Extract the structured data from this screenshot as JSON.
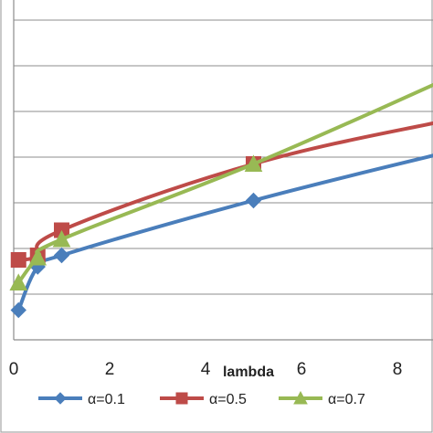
{
  "chart_data": {
    "type": "line",
    "title": "",
    "xlabel": "lambda",
    "ylabel": "",
    "xlim": [
      0,
      9
    ],
    "ylim": [
      0,
      7
    ],
    "x_ticks": [
      "0",
      "2",
      "4",
      "6",
      "8"
    ],
    "grid": true,
    "legend_position": "bottom",
    "series": [
      {
        "name": "α=0.1",
        "color": "#4a7ebb",
        "marker": "diamond",
        "x": [
          0.1,
          0.5,
          1.0,
          5.0,
          9.0
        ],
        "y": [
          0.65,
          1.6,
          1.85,
          3.05,
          4.1
        ]
      },
      {
        "name": "α=0.5",
        "color": "#be4b48",
        "marker": "square",
        "x": [
          0.1,
          0.5,
          1.0,
          5.0,
          9.0
        ],
        "y": [
          1.75,
          1.85,
          2.4,
          3.85,
          4.8
        ]
      },
      {
        "name": "α=0.7",
        "color": "#98b954",
        "marker": "triangle",
        "x": [
          0.1,
          0.5,
          1.0,
          5.0,
          9.0
        ],
        "y": [
          1.25,
          1.8,
          2.2,
          3.85,
          5.7
        ]
      }
    ]
  }
}
